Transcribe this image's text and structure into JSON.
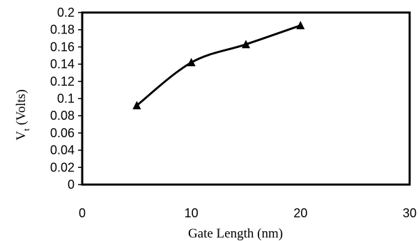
{
  "chart_data": {
    "type": "line",
    "title": "",
    "xlabel": "Gate Length (nm)",
    "ylabel": "V",
    "ylabel_subscript": "t",
    "ylabel_suffix": " (Volts)",
    "xlim": [
      0,
      30
    ],
    "ylim": [
      0,
      0.2
    ],
    "x_ticks": [
      "0",
      "10",
      "20",
      "30"
    ],
    "y_ticks": [
      "0",
      "0.02",
      "0.04",
      "0.06",
      "0.08",
      "0.1",
      "0.12",
      "0.14",
      "0.16",
      "0.18",
      "0.2"
    ],
    "grid": false,
    "legend": "none",
    "marker": "triangle",
    "series": [
      {
        "x": [
          5,
          10,
          15,
          20
        ],
        "y": [
          0.092,
          0.142,
          0.163,
          0.185
        ]
      }
    ],
    "colors": {
      "line": "#000000",
      "frame": "#000000"
    }
  }
}
